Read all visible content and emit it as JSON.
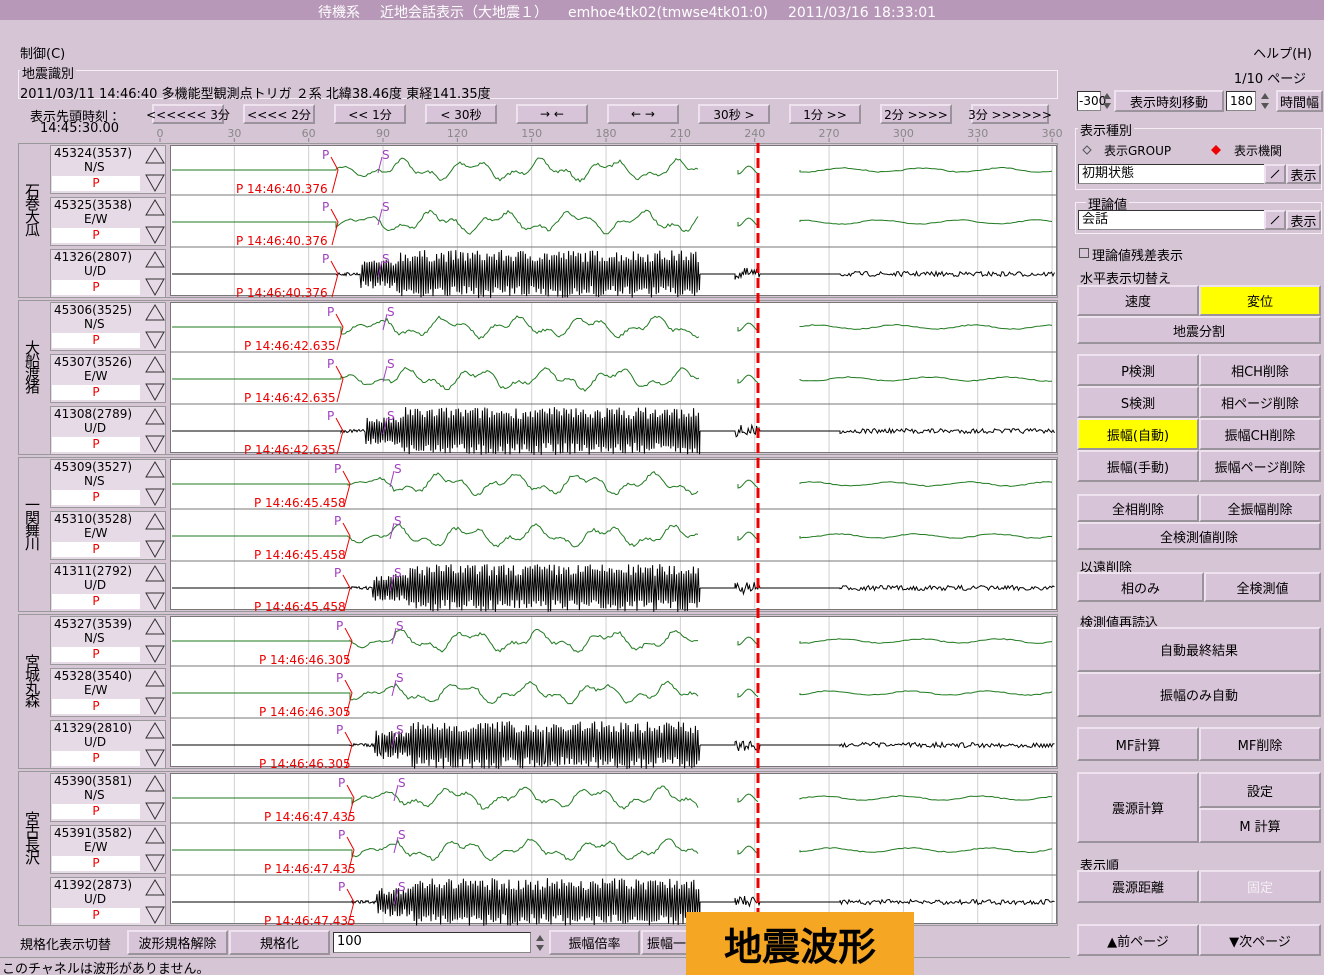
{
  "title_bar": [
    "待機系",
    "近地会話表示（大地震１）",
    "emhoe4tk02(tmwse4tk01:0)",
    "2011/03/16 18:33:01"
  ],
  "menu": {
    "control": "制御(C)",
    "help": "ヘルプ(H)"
  },
  "event": {
    "label": "地震識別",
    "text": "2011/03/11 14:46:40 多機能型観測点トリガ ２系 北緯38.46度 東経141.35度"
  },
  "time": {
    "label": "表示先頭時刻：",
    "start": "14:45:30.00",
    "nav": [
      "<<<<<< 3分",
      "<<<< 2分",
      "<< 1分",
      "< 30秒",
      "→ ←",
      "← →",
      "30秒 >",
      "1分 >>",
      "2分 >>>>",
      "3分 >>>>>>"
    ],
    "ticks": [
      0,
      30,
      60,
      90,
      120,
      150,
      180,
      210,
      240,
      270,
      300,
      330,
      360
    ]
  },
  "stations": [
    {
      "name": "石巻大瓜",
      "channels": [
        {
          "id": "45324(3537)",
          "component": "N/S",
          "phase": "P",
          "pick_time": "P 14:46:40.376",
          "p_mark": "P",
          "s_mark": "S"
        },
        {
          "id": "45325(3538)",
          "component": "E/W",
          "phase": "P",
          "pick_time": "P 14:46:40.376",
          "p_mark": "P",
          "s_mark": "S"
        },
        {
          "id": "41326(2807)",
          "component": "U/D",
          "phase": "P",
          "pick_time": "P 14:46:40.376",
          "p_mark": "P",
          "s_mark": "S"
        }
      ]
    },
    {
      "name": "大船渡猪",
      "channels": [
        {
          "id": "45306(3525)",
          "component": "N/S",
          "phase": "P",
          "pick_time": "P 14:46:42.635",
          "p_mark": "P",
          "s_mark": "S"
        },
        {
          "id": "45307(3526)",
          "component": "E/W",
          "phase": "P",
          "pick_time": "P 14:46:42.635",
          "p_mark": "P",
          "s_mark": "S"
        },
        {
          "id": "41308(2789)",
          "component": "U/D",
          "phase": "P",
          "pick_time": "P 14:46:42.635",
          "p_mark": "P",
          "s_mark": "S"
        }
      ]
    },
    {
      "name": "一関舞川",
      "channels": [
        {
          "id": "45309(3527)",
          "component": "N/S",
          "phase": "P",
          "pick_time": "P 14:46:45.458",
          "p_mark": "P",
          "s_mark": "S"
        },
        {
          "id": "45310(3528)",
          "component": "E/W",
          "phase": "P",
          "pick_time": "P 14:46:45.458",
          "p_mark": "P",
          "s_mark": "S"
        },
        {
          "id": "41311(2792)",
          "component": "U/D",
          "phase": "P",
          "pick_time": "P 14:46:45.458",
          "p_mark": "P",
          "s_mark": "S"
        }
      ]
    },
    {
      "name": "宮城丸森",
      "channels": [
        {
          "id": "45327(3539)",
          "component": "N/S",
          "phase": "P",
          "pick_time": "P 14:46:46.305",
          "p_mark": "P",
          "s_mark": "S"
        },
        {
          "id": "45328(3540)",
          "component": "E/W",
          "phase": "P",
          "pick_time": "P 14:46:46.305",
          "p_mark": "P",
          "s_mark": "S"
        },
        {
          "id": "41329(2810)",
          "component": "U/D",
          "phase": "P",
          "pick_time": "P 14:46:46.305",
          "p_mark": "P",
          "s_mark": "S"
        }
      ]
    },
    {
      "name": "宮古長沢",
      "channels": [
        {
          "id": "45390(3581)",
          "component": "N/S",
          "phase": "P",
          "pick_time": "P 14:46:47.435",
          "p_mark": "P",
          "s_mark": "S"
        },
        {
          "id": "45391(3582)",
          "component": "E/W",
          "phase": "P",
          "pick_time": "P 14:46:47.435",
          "p_mark": "P",
          "s_mark": "S"
        },
        {
          "id": "41392(2873)",
          "component": "U/D",
          "phase": "P",
          "pick_time": "P 14:46:47.435",
          "p_mark": "P",
          "s_mark": "S"
        }
      ]
    }
  ],
  "right_panel": {
    "page": "1/10 ページ",
    "shift": "-300",
    "shift_button": "表示時刻移動",
    "width": "180",
    "width_button": "時間幅",
    "display_type": {
      "label": "表示種別",
      "options": [
        "表示GROUP",
        "表示機関"
      ],
      "select": "初期状態",
      "button": "表示"
    },
    "theory": {
      "label": "理論値",
      "select": "会話",
      "button": "表示"
    },
    "residual": "理論値残差表示",
    "horizontal": {
      "label": "水平表示切替え",
      "velocity": "速度",
      "displacement": "変位",
      "split": "地震分割"
    },
    "picks": [
      "P検測",
      "相CH削除",
      "S検測",
      "相ページ削除",
      "振幅(自動)",
      "振幅CH削除",
      "振幅(手動)",
      "振幅ページ削除"
    ],
    "delete_all": [
      "全相削除",
      "全振幅削除",
      "全検測値削除"
    ],
    "beyond": {
      "label": "以遠削除",
      "buttons": [
        "相のみ",
        "全検測値"
      ]
    },
    "reload": {
      "label": "検測値再読込",
      "buttons": [
        "自動最終結果",
        "振幅のみ自動"
      ]
    },
    "mf": [
      "MF計算",
      "MF削除"
    ],
    "hypo": [
      "震源計算",
      "設定",
      "M 計算"
    ],
    "order": {
      "label": "表示順",
      "buttons": [
        "震源距離",
        "固定"
      ]
    },
    "paging": [
      "▲前ページ",
      "▼次ページ"
    ]
  },
  "bottom_bar": {
    "toggle": "規格化表示切替",
    "buttons": [
      "波形規格解除",
      "規格化"
    ],
    "scale": "100",
    "gain": "振幅倍率",
    "gain2": "振幅一"
  },
  "status": "このチャネルは波形がありません。",
  "overlay": "地震波形"
}
